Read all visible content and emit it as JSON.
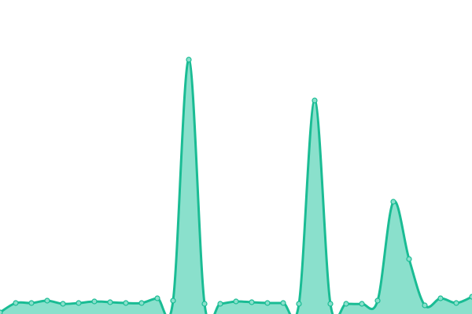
{
  "chart_data": {
    "type": "area",
    "title": "",
    "xlabel": "",
    "ylabel": "",
    "x": [
      0,
      1,
      2,
      3,
      4,
      5,
      6,
      7,
      8,
      9,
      10,
      11,
      12,
      13,
      14,
      15,
      16,
      17,
      18,
      19,
      20,
      21,
      22,
      23,
      24,
      25,
      26,
      27,
      28,
      29,
      30
    ],
    "series": [
      {
        "values": [
          2,
          14,
          14,
          17,
          13,
          14,
          16,
          15,
          14,
          14,
          20,
          17,
          324,
          13,
          13,
          16,
          15,
          14,
          14,
          13,
          272,
          13,
          13,
          13,
          17,
          143,
          70,
          11,
          20,
          14,
          22
        ]
      }
    ],
    "ylim": [
      0,
      400
    ],
    "grid": false,
    "axes_visible": false,
    "smooth": true,
    "colors": {
      "line": "#1abc94",
      "fill": "#8ae0cc",
      "marker_fill": "#8ae0cc"
    }
  }
}
